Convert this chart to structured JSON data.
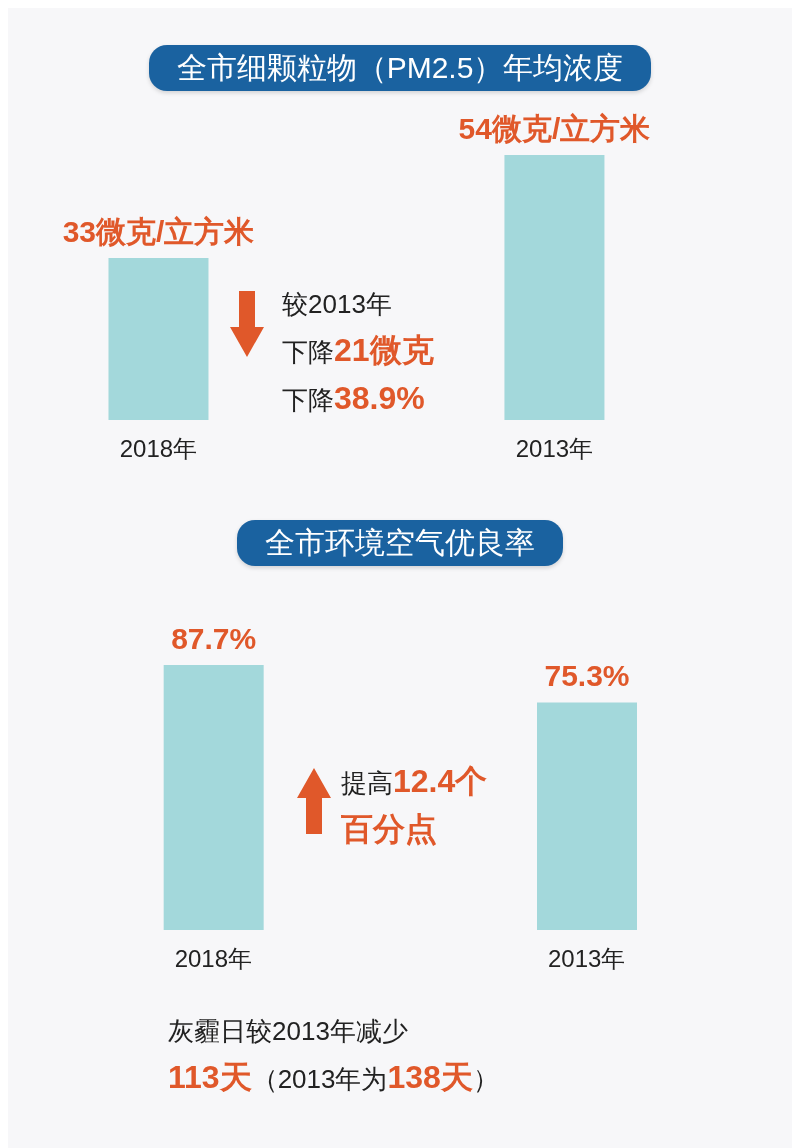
{
  "chart_data": [
    {
      "type": "bar",
      "title": "全市细颗粒物（PM2.5）年均浓度",
      "categories": [
        "2018年",
        "2013年"
      ],
      "values": [
        33,
        54
      ],
      "value_labels": [
        "33微克/立方米",
        "54微克/立方米"
      ],
      "color": "#a3d8db",
      "tick_labels": "x",
      "annotations": [
        "较2013年",
        "下降21微克",
        "下降38.9%"
      ]
    },
    {
      "type": "bar",
      "title": "全市环境空气优良率",
      "categories": [
        "2018年",
        "2013年"
      ],
      "values": [
        87.7,
        75.3
      ],
      "value_labels": [
        "87.7%",
        "75.3%"
      ],
      "color": "#a3d8db",
      "tick_labels": "x",
      "annotations": [
        "提高12.4个百分点",
        "灰霾日较2013年减少",
        "113天（2013年为138天）"
      ]
    }
  ]
}
